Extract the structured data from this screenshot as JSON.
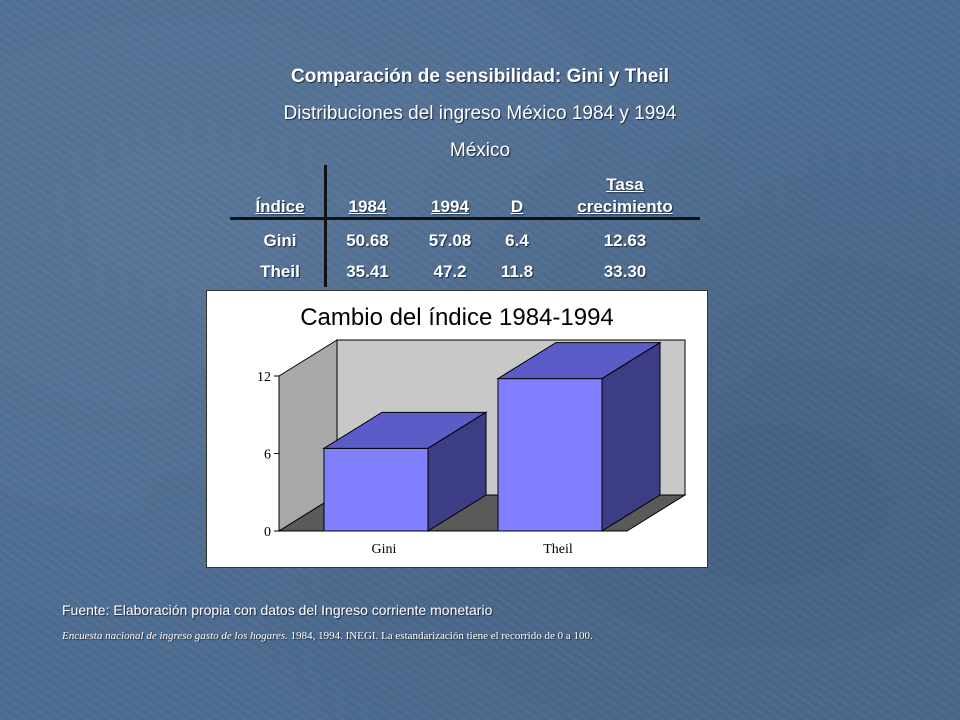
{
  "header": {
    "title": "Comparación de sensibilidad: Gini y Theil",
    "subtitle": "Distribuciones del ingreso México 1984 y 1994",
    "region": "México"
  },
  "table": {
    "headers": [
      "Índice",
      "1984",
      "1994",
      "D",
      "Tasa",
      "crecimiento"
    ],
    "rows": [
      [
        "Gini",
        "50.68",
        "57.08",
        "6.4",
        "12.63"
      ],
      [
        "Theil",
        "35.41",
        "47.2",
        "11.8",
        "33.30"
      ]
    ]
  },
  "chart_data": {
    "type": "bar",
    "title": "Cambio del índice 1984-1994",
    "categories": [
      "Gini",
      "Theil"
    ],
    "values": [
      6.4,
      11.8
    ],
    "yticks": [
      "0",
      "6",
      "12"
    ],
    "ylim": [
      0,
      12
    ],
    "grid": false,
    "legend": "none",
    "colors": {
      "front": "#8080ff",
      "top": "#5c5cc8",
      "side": "#3d3d85",
      "wall": "#c8c8c8",
      "floor": "#5a5a5a"
    }
  },
  "footer": {
    "source": "Fuente: Elaboración propia con datos del Ingreso corriente monetario",
    "note_italic": "Encuesta nacional de ingreso gasto de los hogares.",
    "note_rest": " 1984, 1994. INEGI. La estandarización tiene el recorrido de 0 a 100."
  }
}
